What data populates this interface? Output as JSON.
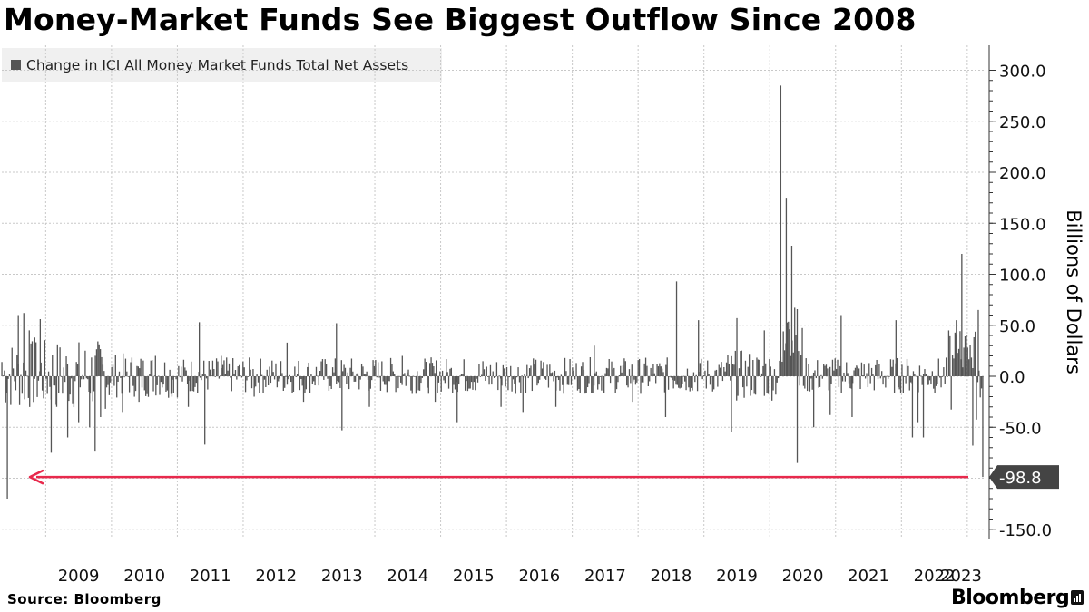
{
  "title": "Money-Market Funds See Biggest Outflow Since 2008",
  "legend": {
    "label": "Change in ICI All Money Market Funds Total Net Assets",
    "color": "#555555"
  },
  "ylabel": "Billions of Dollars",
  "footer": {
    "source": "Source: Bloomberg",
    "brand": "Bloomberg"
  },
  "chart_data": {
    "type": "bar",
    "frequency": "weekly",
    "x_range": [
      "2008-05",
      "2023-03"
    ],
    "x_tick_labels": [
      "2009",
      "2010",
      "2011",
      "2012",
      "2013",
      "2014",
      "2015",
      "2016",
      "2017",
      "2018",
      "2019",
      "2020",
      "2021",
      "2022",
      "2023"
    ],
    "ylim": [
      -160,
      322
    ],
    "y_ticks": [
      300,
      250,
      200,
      150,
      100,
      50,
      0,
      -50,
      -100,
      -150
    ],
    "y_tick_labels": [
      "300.0",
      "250.0",
      "200.0",
      "150.0",
      "100.0",
      "50.0",
      "0.0",
      "-50.0",
      "",
      "-150.0"
    ],
    "y_axis_position": "right",
    "grid": true,
    "legend_position": "top-left",
    "series": [
      {
        "name": "Change in ICI All Money Market Funds Total Net Assets",
        "color": "#555555",
        "points": [
          {
            "x": "2008-05",
            "y": 14
          },
          {
            "x": "2008-06",
            "y": -120
          },
          {
            "x": "2008-08",
            "y": 60
          },
          {
            "x": "2008-09",
            "y": 62
          },
          {
            "x": "2008-10",
            "y": 45
          },
          {
            "x": "2008-11",
            "y": 38
          },
          {
            "x": "2008-12",
            "y": 56
          },
          {
            "x": "2009-02",
            "y": -75
          },
          {
            "x": "2009-03",
            "y": -30
          },
          {
            "x": "2009-05",
            "y": -60
          },
          {
            "x": "2009-07",
            "y": -45
          },
          {
            "x": "2009-09",
            "y": -50
          },
          {
            "x": "2009-10",
            "y": -73
          },
          {
            "x": "2009-11",
            "y": -40
          },
          {
            "x": "2010-03",
            "y": -35
          },
          {
            "x": "2010-06",
            "y": -25
          },
          {
            "x": "2010-09",
            "y": 20
          },
          {
            "x": "2010-12",
            "y": -20
          },
          {
            "x": "2011-03",
            "y": -30
          },
          {
            "x": "2011-05",
            "y": 53
          },
          {
            "x": "2011-06",
            "y": -67
          },
          {
            "x": "2011-09",
            "y": 20
          },
          {
            "x": "2012-03",
            "y": -20
          },
          {
            "x": "2012-09",
            "y": 33
          },
          {
            "x": "2012-12",
            "y": -25
          },
          {
            "x": "2013-06",
            "y": 52
          },
          {
            "x": "2013-07",
            "y": -53
          },
          {
            "x": "2013-12",
            "y": -30
          },
          {
            "x": "2014-06",
            "y": 20
          },
          {
            "x": "2014-12",
            "y": -25
          },
          {
            "x": "2015-04",
            "y": -45
          },
          {
            "x": "2015-12",
            "y": -30
          },
          {
            "x": "2016-04",
            "y": -35
          },
          {
            "x": "2016-10",
            "y": -30
          },
          {
            "x": "2017-05",
            "y": 30
          },
          {
            "x": "2017-12",
            "y": -25
          },
          {
            "x": "2018-06",
            "y": -40
          },
          {
            "x": "2018-08",
            "y": 93
          },
          {
            "x": "2018-12",
            "y": 55
          },
          {
            "x": "2019-06",
            "y": -55
          },
          {
            "x": "2019-07",
            "y": 57
          },
          {
            "x": "2019-12",
            "y": 45
          },
          {
            "x": "2020-03",
            "y": 285
          },
          {
            "x": "2020-04",
            "y": 175
          },
          {
            "x": "2020-05",
            "y": 128
          },
          {
            "x": "2020-06",
            "y": -85
          },
          {
            "x": "2020-09",
            "y": -50
          },
          {
            "x": "2020-12",
            "y": -38
          },
          {
            "x": "2021-02",
            "y": 60
          },
          {
            "x": "2021-04",
            "y": -40
          },
          {
            "x": "2021-12",
            "y": 55
          },
          {
            "x": "2022-03",
            "y": -60
          },
          {
            "x": "2022-04",
            "y": -45
          },
          {
            "x": "2022-05",
            "y": -60
          },
          {
            "x": "2022-11",
            "y": 55
          },
          {
            "x": "2022-12",
            "y": 120
          },
          {
            "x": "2023-02",
            "y": -68
          },
          {
            "x": "2023-03",
            "y": 65
          },
          {
            "x": "2023-03-end",
            "y": -98.8
          }
        ]
      }
    ],
    "annotation": {
      "label": "-98.8",
      "value": -98.8,
      "arrow_color": "#e8294c",
      "box_color": "#444444"
    }
  }
}
